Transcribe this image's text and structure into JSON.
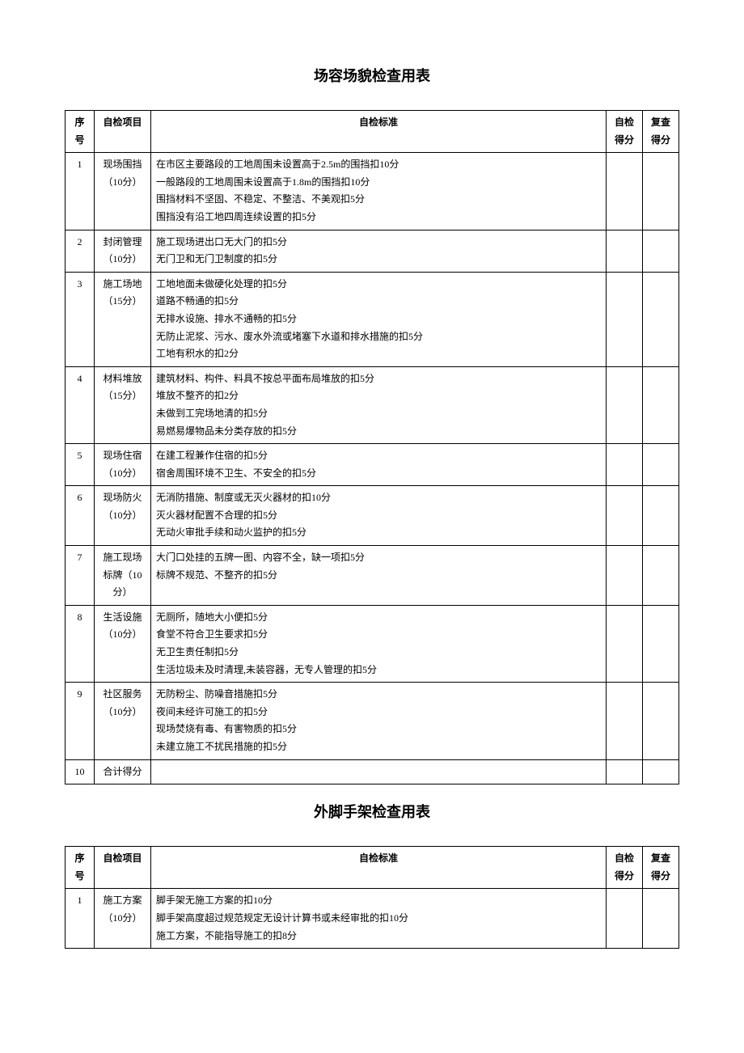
{
  "table1": {
    "title": "场容场貌检查用表",
    "headers": {
      "seq": "序号",
      "item": "自检项目",
      "std": "自检标准",
      "self_score": "自检得分",
      "recheck_score": "复查得分"
    },
    "rows": [
      {
        "seq": "1",
        "item": "现场围挡（10分）",
        "criteria": [
          "在市区主要路段的工地周围未设置高于2.5m的围挡扣10分",
          "一般路段的工地周围未设置高于1.8m的围挡扣10分",
          "围挡材料不坚固、不稳定、不整洁、不美观扣5分",
          "围挡没有沿工地四周连续设置的扣5分"
        ]
      },
      {
        "seq": "2",
        "item": "封闭管理（10分）",
        "criteria": [
          "施工现场进出口无大门的扣5分",
          "无门卫和无门卫制度的扣5分"
        ]
      },
      {
        "seq": "3",
        "item": "施工场地（15分）",
        "criteria": [
          "工地地面未做硬化处理的扣5分",
          "道路不畅通的扣5分",
          "无排水设施、排水不通畅的扣5分",
          "无防止泥浆、污水、废水外流或堵塞下水道和排水措施的扣5分",
          "工地有积水的扣2分"
        ]
      },
      {
        "seq": "4",
        "item": "材料堆放（15分）",
        "criteria": [
          "建筑材料、构件、料具不按总平面布局堆放的扣5分",
          "堆放不整齐的扣2分",
          "未做到工完场地清的扣5分",
          "易燃易爆物品未分类存放的扣5分"
        ]
      },
      {
        "seq": "5",
        "item": "现场住宿（10分）",
        "criteria": [
          "在建工程兼作住宿的扣5分",
          "宿舍周围环境不卫生、不安全的扣5分"
        ]
      },
      {
        "seq": "6",
        "item": "现场防火（10分）",
        "criteria": [
          "无消防措施、制度或无灭火器材的扣10分",
          "灭火器材配置不合理的扣5分",
          "无动火审批手续和动火监护的扣5分"
        ]
      },
      {
        "seq": "7",
        "item": "施工现场标牌（10分）",
        "criteria": [
          "大门口处挂的五牌一图、内容不全，缺一项扣5分",
          "标牌不规范、不整齐的扣5分"
        ]
      },
      {
        "seq": "8",
        "item": "生活设施（10分）",
        "criteria": [
          "无厕所，随地大小便扣5分",
          "食堂不符合卫生要求扣5分",
          "无卫生责任制扣5分",
          "生活垃圾未及时清理,未装容器，无专人管理的扣5分"
        ]
      },
      {
        "seq": "9",
        "item": "社区服务（10分）",
        "criteria": [
          "无防粉尘、防噪音措施扣5分",
          "夜间未经许可施工的扣5分",
          "现场焚烧有毒、有害物质的扣5分",
          "未建立施工不扰民措施的扣5分"
        ]
      },
      {
        "seq": "10",
        "item": "合计得分",
        "criteria": []
      }
    ]
  },
  "table2": {
    "title": "外脚手架检查用表",
    "headers": {
      "seq": "序号",
      "item": "自检项目",
      "std": "自检标准",
      "self_score": "自检得分",
      "recheck_score": "复查得分"
    },
    "rows": [
      {
        "seq": "1",
        "item": "施工方案（10分）",
        "criteria": [
          "脚手架无施工方案的扣10分",
          "脚手架高度超过规范规定无设计计算书或未经审批的扣10分",
          "施工方案，不能指导施工的扣8分"
        ]
      }
    ]
  }
}
